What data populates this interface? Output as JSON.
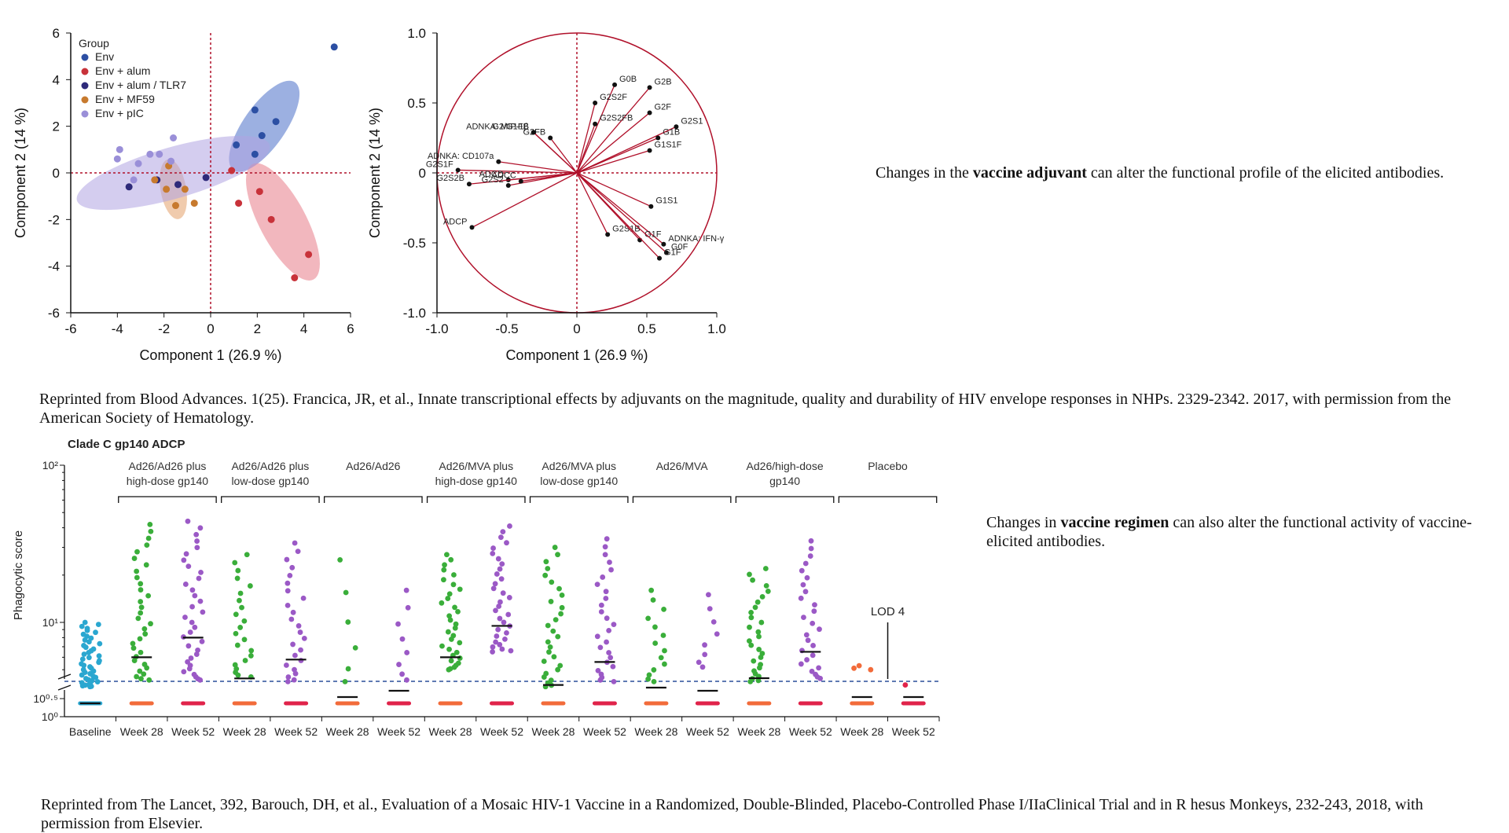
{
  "chart_data": [
    {
      "type": "scatter",
      "xlabel": "Component 1 (26.9 %)",
      "ylabel": "Component 2 (14 %)",
      "xlim": [
        -6,
        6
      ],
      "ylim": [
        -6,
        6
      ],
      "xticks": [
        "-6",
        "-4",
        "-2",
        "0",
        "2",
        "4",
        "6"
      ],
      "yticks": [
        "6",
        "4",
        "2",
        "0",
        "-2",
        "-4",
        "-6"
      ],
      "legend": {
        "title": "Group",
        "placement": "top-left"
      },
      "series": [
        {
          "name": "Env",
          "color": "#2c4fa3",
          "points": [
            [
              1.1,
              1.2
            ],
            [
              1.9,
              2.7
            ],
            [
              2.8,
              2.2
            ],
            [
              2.2,
              1.6
            ],
            [
              1.9,
              0.8
            ],
            [
              5.3,
              5.4
            ]
          ]
        },
        {
          "name": "Env + alum",
          "color": "#c8323a",
          "points": [
            [
              0.9,
              0.1
            ],
            [
              1.2,
              -1.3
            ],
            [
              2.1,
              -0.8
            ],
            [
              2.6,
              -2.0
            ],
            [
              3.6,
              -4.5
            ],
            [
              4.2,
              -3.5
            ]
          ]
        },
        {
          "name": "Env + alum / TLR7",
          "color": "#2e2a7a",
          "points": [
            [
              -3.5,
              -0.6
            ],
            [
              -1.4,
              -0.5
            ],
            [
              -0.2,
              -0.2
            ],
            [
              -2.3,
              -0.3
            ]
          ]
        },
        {
          "name": "Env + MF59",
          "color": "#c77a2e",
          "points": [
            [
              -1.8,
              0.3
            ],
            [
              -2.4,
              -0.3
            ],
            [
              -1.9,
              -0.7
            ],
            [
              -1.5,
              -1.4
            ],
            [
              -1.1,
              -0.7
            ],
            [
              -0.7,
              -1.3
            ]
          ]
        },
        {
          "name": "Env + pIC",
          "color": "#9a8fd8",
          "points": [
            [
              -3.9,
              1.0
            ],
            [
              -2.6,
              0.8
            ],
            [
              -1.6,
              1.5
            ],
            [
              -3.1,
              0.4
            ],
            [
              -3.3,
              -0.3
            ],
            [
              -1.7,
              0.5
            ],
            [
              -2.2,
              0.8
            ],
            [
              -4.0,
              0.6
            ]
          ]
        }
      ],
      "ellipses": [
        {
          "series": "Env",
          "color": "#4a6fc9"
        },
        {
          "series": "Env + alum",
          "color": "#e87c88"
        },
        {
          "series": "Env + MF59",
          "color": "#e3a06a"
        },
        {
          "series": "Env + pIC",
          "color": "#b0a4e2"
        }
      ]
    },
    {
      "type": "scatter",
      "xlabel": "Component 1 (26.9 %)",
      "ylabel": "Component 2 (14 %)",
      "xlim": [
        -1.0,
        1.0
      ],
      "ylim": [
        -1.0,
        1.0
      ],
      "xticks": [
        "-1.0",
        "-0.5",
        "0",
        "0.5",
        "1.0"
      ],
      "yticks": [
        "1.0",
        "0.5",
        "0",
        "-0.5",
        "-1.0"
      ],
      "loadings": [
        {
          "label": "G0B",
          "x": 0.27,
          "y": 0.63
        },
        {
          "label": "G2B",
          "x": 0.52,
          "y": 0.61
        },
        {
          "label": "G2S2F",
          "x": 0.13,
          "y": 0.5
        },
        {
          "label": "G2F",
          "x": 0.52,
          "y": 0.43
        },
        {
          "label": "G2S2FB",
          "x": 0.13,
          "y": 0.35
        },
        {
          "label": "G2S1",
          "x": 0.71,
          "y": 0.33
        },
        {
          "label": "G2/G1FB",
          "x": -0.31,
          "y": 0.29
        },
        {
          "label": "G2FB",
          "x": -0.19,
          "y": 0.25
        },
        {
          "label": "ADNKA: MIP-1β",
          "x": -0.31,
          "y": 0.29
        },
        {
          "label": "G1B",
          "x": 0.58,
          "y": 0.25
        },
        {
          "label": "G1S1F",
          "x": 0.52,
          "y": 0.16
        },
        {
          "label": "ADNKA: CD107a",
          "x": -0.56,
          "y": 0.08
        },
        {
          "label": "G2S1F",
          "x": -0.85,
          "y": 0.02
        },
        {
          "label": "ADCD",
          "x": -0.49,
          "y": -0.05
        },
        {
          "label": "G2S2B",
          "x": -0.77,
          "y": -0.08
        },
        {
          "label": "G2S2",
          "x": -0.49,
          "y": -0.09
        },
        {
          "label": "ADCC",
          "x": -0.4,
          "y": -0.06
        },
        {
          "label": "G1S1",
          "x": 0.53,
          "y": -0.24
        },
        {
          "label": "ADCP",
          "x": -0.75,
          "y": -0.39
        },
        {
          "label": "G2S1B",
          "x": 0.22,
          "y": -0.44
        },
        {
          "label": "ADNKA: IFN-γ",
          "x": 0.62,
          "y": -0.51
        },
        {
          "label": "G1F",
          "x": 0.45,
          "y": -0.48
        },
        {
          "label": "G0F",
          "x": 0.64,
          "y": -0.57
        },
        {
          "label": "G1F",
          "x": 0.59,
          "y": -0.61
        }
      ]
    },
    {
      "type": "scatter",
      "title": "Clade C gp140 ADCP",
      "ylabel": "Phagocytic score",
      "yscale": "log",
      "yticks": [
        "10²",
        "10¹",
        "10⁰·⁵",
        "10⁰"
      ],
      "lod_label": "LOD 4",
      "groups": [
        {
          "label": "Ad26/Ad26 plus high-dose gp140"
        },
        {
          "label": "Ad26/Ad26 plus low-dose gp140"
        },
        {
          "label": "Ad26/Ad26"
        },
        {
          "label": "Ad26/MVA plus high-dose gp140"
        },
        {
          "label": "Ad26/MVA plus low-dose gp140"
        },
        {
          "label": "Ad26/MVA"
        },
        {
          "label": "Ad26/high-dose gp140"
        },
        {
          "label": "Placebo"
        }
      ],
      "columns": [
        {
          "label": "Baseline",
          "color": "#2aa7d0",
          "median": 3.0,
          "max": 10.0,
          "min": 3.9,
          "n": 45
        },
        {
          "label": "Week 28",
          "color": "#3aae3a",
          "median": 6.0,
          "max": 42,
          "min": 4.3,
          "n": 32
        },
        {
          "label": "Week 52",
          "color": "#9b59c6",
          "median": 8.0,
          "max": 44,
          "min": 4.3,
          "n": 34
        },
        {
          "label": "Week 28",
          "color": "#3aae3a",
          "median": 4.4,
          "max": 27,
          "min": 4.5,
          "n": 22
        },
        {
          "label": "Week 52",
          "color": "#9b59c6",
          "median": 5.8,
          "max": 32,
          "min": 4.2,
          "n": 24
        },
        {
          "label": "Week 28",
          "color": "#3aae3a",
          "median": 3.2,
          "max": 25,
          "min": 4.2,
          "n": 6
        },
        {
          "label": "Week 52",
          "color": "#9b59c6",
          "median": 3.4,
          "max": 16,
          "min": 4.3,
          "n": 8
        },
        {
          "label": "Week 28",
          "color": "#3aae3a",
          "median": 6.0,
          "max": 27,
          "min": 5.0,
          "n": 32
        },
        {
          "label": "Week 52",
          "color": "#9b59c6",
          "median": 9.5,
          "max": 41,
          "min": 6.5,
          "n": 32
        },
        {
          "label": "Week 28",
          "color": "#3aae3a",
          "median": 4.0,
          "max": 30,
          "min": 3.9,
          "n": 28
        },
        {
          "label": "Week 52",
          "color": "#9b59c6",
          "median": 5.6,
          "max": 34,
          "min": 4.2,
          "n": 26
        },
        {
          "label": "Week 28",
          "color": "#3aae3a",
          "median": 3.5,
          "max": 16,
          "min": 4.2,
          "n": 14
        },
        {
          "label": "Week 52",
          "color": "#9b59c6",
          "median": 3.4,
          "max": 15,
          "min": 5.2,
          "n": 8
        },
        {
          "label": "Week 28",
          "color": "#3aae3a",
          "median": 3.8,
          "max": 22,
          "min": 4.2,
          "n": 28
        },
        {
          "label": "Week 52",
          "color": "#9b59c6",
          "median": 6.5,
          "max": 33,
          "min": 4.4,
          "n": 26
        },
        {
          "label": "Week 28",
          "color": "#f26b3a",
          "median": 3.2,
          "max": 5.3,
          "min": 5.0,
          "n": 3
        },
        {
          "label": "Week 52",
          "color": "#e0234a",
          "median": 3.2,
          "max": 4.0,
          "min": 4.0,
          "n": 1
        }
      ]
    }
  ],
  "captions": {
    "adjuvant_pre": "Changes in the ",
    "adjuvant_bold": "vaccine adjuvant",
    "adjuvant_post": " can alter the functional profile of the elicited antibodies.",
    "regimen_pre": "Changes in ",
    "regimen_bold": "vaccine regimen",
    "regimen_post": " can also alter the functional activity of vaccine-elicited antibodies.",
    "citation1": "Reprinted from Blood Advances. 1(25). Francica, JR, et al., Innate transcriptional effects by adjuvants on the magnitude, quality and durability of HIV envelope responses in NHPs. 2329-2342. 2017, with permission from the American Society of Hematology.",
    "citation2": "Reprinted from The Lancet, 392, Barouch, DH, et al., Evaluation of a Mosaic HIV-1 Vaccine in a Randomized, Double-Blinded, Placebo-Controlled Phase I/IIaClinical Trial and in R hesus Monkeys, 232-243, 2018, with permission from Elsevier."
  }
}
